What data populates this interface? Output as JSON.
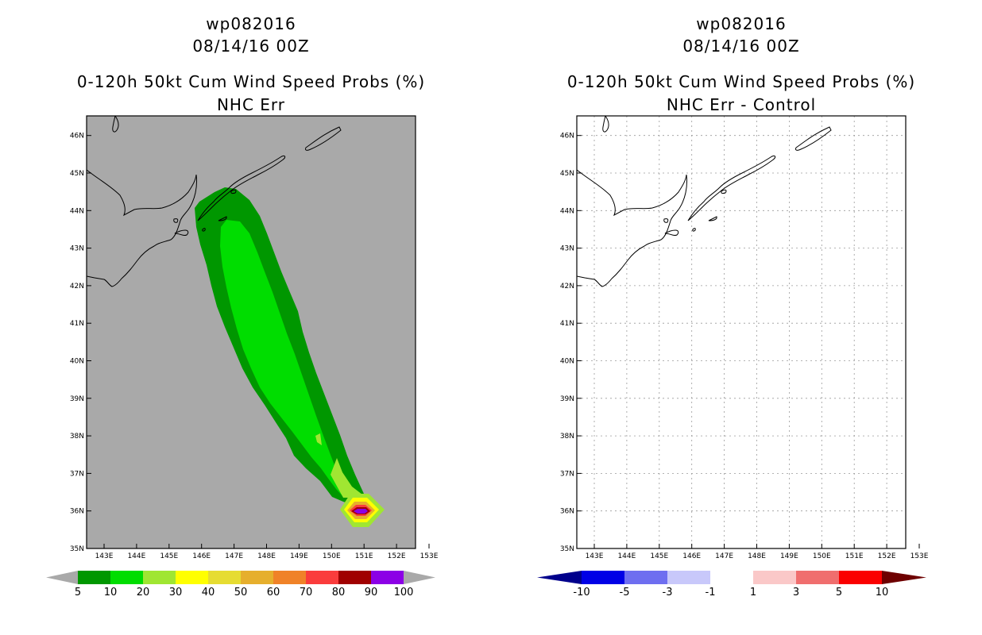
{
  "left_panel": {
    "storm_id": "wp082016",
    "datetime": "08/14/16 00Z",
    "product": "0-120h 50kt Cum Wind Speed Probs (%)",
    "subtitle": "NHC Err",
    "background_color": "#a9a9a9",
    "colorbar": {
      "labels": [
        "5",
        "10",
        "20",
        "30",
        "40",
        "50",
        "60",
        "70",
        "80",
        "90",
        "100"
      ],
      "colors": [
        "#009700",
        "#00dd00",
        "#a0e632",
        "#ffff00",
        "#e6dc32",
        "#e6af2d",
        "#f08228",
        "#fa3c3c",
        "#a00000",
        "#8c00e6"
      ],
      "end_color": "#a9a9a9"
    }
  },
  "right_panel": {
    "storm_id": "wp082016",
    "datetime": "08/14/16 00Z",
    "product": "0-120h 50kt Cum Wind Speed Probs (%)",
    "subtitle": "NHC Err - Control",
    "background_color": "#ffffff",
    "colorbar": {
      "labels": [
        "-10",
        "-5",
        "-3",
        "-1",
        "1",
        "3",
        "5",
        "10"
      ],
      "colors": [
        "#0000e6",
        "#6e6ef0",
        "#c8c8fa",
        "#ffffff",
        "#fac8c8",
        "#f06e6e",
        "#fa0000"
      ],
      "end_low_color": "#00008c",
      "end_high_color": "#6e0000"
    }
  },
  "axes": {
    "lat_labels": [
      "35N",
      "36N",
      "37N",
      "38N",
      "39N",
      "40N",
      "41N",
      "42N",
      "43N",
      "44N",
      "45N",
      "46N"
    ],
    "lon_labels": [
      "143E",
      "144E",
      "145E",
      "146E",
      "147E",
      "148E",
      "149E",
      "150E",
      "151E",
      "152E",
      "153E"
    ]
  },
  "probability_contours": [
    {
      "level": "5",
      "color": "#009700"
    },
    {
      "level": "10",
      "color": "#00dd00"
    },
    {
      "level": "20",
      "color": "#a0e632"
    },
    {
      "level": "30",
      "color": "#ffff00"
    },
    {
      "level": "50",
      "color": "#e6af2d"
    },
    {
      "level": "70",
      "color": "#fa3c3c"
    },
    {
      "level": "80",
      "color": "#a00000"
    },
    {
      "level": "90",
      "color": "#8c00e6"
    }
  ]
}
